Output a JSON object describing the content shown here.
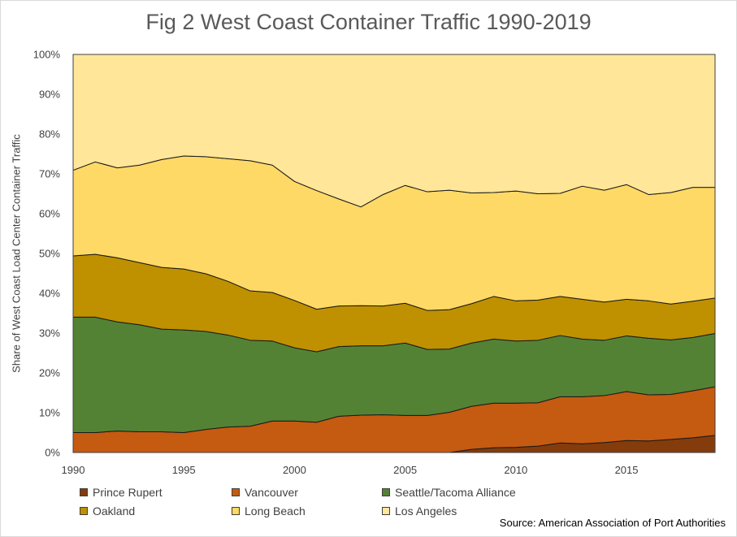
{
  "title": "Fig 2 West Coast Container Traffic 1990-2019",
  "source": "Source: American Association of Port Authorities",
  "chart_data": {
    "type": "area",
    "stacked": true,
    "percent": true,
    "title": "Fig 2 West Coast Container Traffic 1990-2019",
    "xlabel": "",
    "ylabel": "Share of West Coast Load Center Container Traffic",
    "xlim": [
      1990,
      2019
    ],
    "ylim": [
      0,
      100
    ],
    "x_ticks": [
      "1990",
      "1995",
      "2000",
      "2005",
      "2010",
      "2015"
    ],
    "y_ticks": [
      "0%",
      "10%",
      "20%",
      "30%",
      "40%",
      "50%",
      "60%",
      "70%",
      "80%",
      "90%",
      "100%"
    ],
    "grid": false,
    "legend_position": "bottom",
    "x": [
      1990,
      1991,
      1992,
      1993,
      1994,
      1995,
      1996,
      1997,
      1998,
      1999,
      2000,
      2001,
      2002,
      2003,
      2004,
      2005,
      2006,
      2007,
      2008,
      2009,
      2010,
      2011,
      2012,
      2013,
      2014,
      2015,
      2016,
      2017,
      2018,
      2019
    ],
    "series": [
      {
        "name": "Prince Rupert",
        "color": "#843c0c",
        "values": [
          0,
          0,
          0,
          0,
          0,
          0,
          0,
          0,
          0,
          0,
          0,
          0,
          0,
          0,
          0,
          0,
          0,
          0,
          0.8,
          1.2,
          1.3,
          1.6,
          2.4,
          2.2,
          2.5,
          3.0,
          2.9,
          3.3,
          3.7,
          4.3
        ]
      },
      {
        "name": "Vancouver",
        "color": "#c55a11",
        "values": [
          5.0,
          5.0,
          5.4,
          5.2,
          5.2,
          5.0,
          5.8,
          6.4,
          6.6,
          7.9,
          7.9,
          7.6,
          9.1,
          9.4,
          9.5,
          9.3,
          9.3,
          10.1,
          10.8,
          11.2,
          11.1,
          10.9,
          11.6,
          11.8,
          11.8,
          12.3,
          11.6,
          11.3,
          11.8,
          12.2
        ]
      },
      {
        "name": "Seattle/Tacoma Alliance",
        "color": "#548235",
        "values": [
          29.0,
          29.0,
          27.4,
          26.9,
          25.8,
          25.8,
          24.6,
          23.1,
          21.6,
          20.1,
          18.4,
          17.7,
          17.5,
          17.4,
          17.3,
          18.2,
          16.6,
          15.9,
          15.9,
          16.1,
          15.6,
          15.7,
          15.4,
          14.5,
          13.9,
          14.0,
          14.2,
          13.7,
          13.4,
          13.4
        ]
      },
      {
        "name": "Oakland",
        "color": "#bf9000",
        "values": [
          15.4,
          15.8,
          16.1,
          15.6,
          15.5,
          15.3,
          14.5,
          13.5,
          12.4,
          12.2,
          11.9,
          10.7,
          10.2,
          10.1,
          10.0,
          10.0,
          9.8,
          9.9,
          9.9,
          10.7,
          10.1,
          10.1,
          9.8,
          10.0,
          9.6,
          9.2,
          9.4,
          9.0,
          9.1,
          8.9
        ]
      },
      {
        "name": "Long Beach",
        "color": "#ffd966",
        "values": [
          21.5,
          23.2,
          22.6,
          24.5,
          27.1,
          28.4,
          29.4,
          30.8,
          32.7,
          32.0,
          29.9,
          29.8,
          26.9,
          24.8,
          28.0,
          29.6,
          29.8,
          30.0,
          27.8,
          26.1,
          27.6,
          26.7,
          25.9,
          28.4,
          28.1,
          28.8,
          26.7,
          28.0,
          28.6,
          27.8
        ]
      },
      {
        "name": "Los Angeles",
        "color": "#ffe699",
        "values": [
          29.1,
          27.0,
          28.5,
          27.8,
          26.4,
          25.5,
          25.7,
          26.2,
          26.7,
          27.8,
          31.9,
          34.2,
          36.3,
          38.3,
          35.2,
          32.9,
          34.5,
          34.1,
          34.8,
          34.7,
          34.3,
          35.0,
          34.9,
          33.1,
          34.1,
          32.7,
          35.2,
          34.7,
          33.4,
          33.4
        ]
      }
    ]
  }
}
